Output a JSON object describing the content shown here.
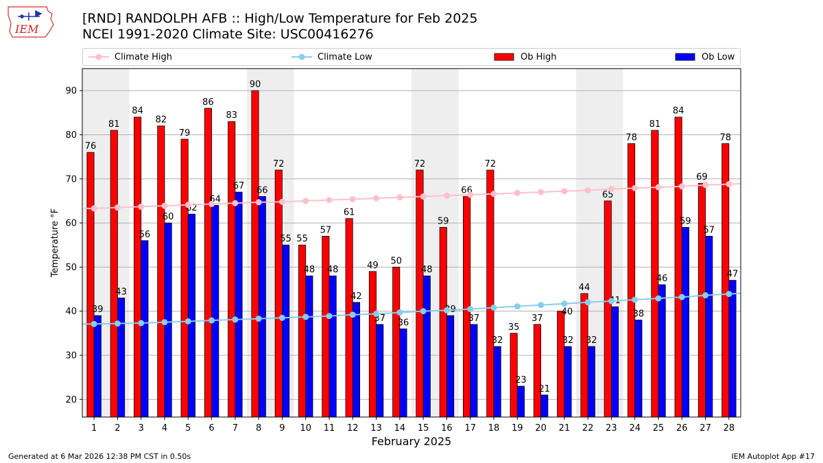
{
  "logo": {
    "text": "IEM"
  },
  "chart_data": {
    "type": "bar",
    "title": "[RND] RANDOLPH AFB :: High/Low Temperature for Feb 2025",
    "subtitle": "NCEI 1991-2020 Climate Site: USC00416276",
    "xlabel": "February 2025",
    "ylabel": "Temperature °F",
    "ylim": [
      16,
      95
    ],
    "yticks": [
      20,
      30,
      40,
      50,
      60,
      70,
      80,
      90
    ],
    "grid": true,
    "legend_position": "top",
    "categories": [
      "1",
      "2",
      "3",
      "4",
      "5",
      "6",
      "7",
      "8",
      "9",
      "10",
      "11",
      "12",
      "13",
      "14",
      "15",
      "16",
      "17",
      "18",
      "19",
      "20",
      "21",
      "22",
      "23",
      "24",
      "25",
      "26",
      "27",
      "28"
    ],
    "weekend_shading_days": [
      1,
      2,
      8,
      9,
      15,
      16,
      22,
      23
    ],
    "series": [
      {
        "name": "Ob High",
        "type": "bar",
        "color": "#ff0000",
        "values": [
          76,
          81,
          84,
          82,
          79,
          86,
          83,
          90,
          72,
          55,
          57,
          61,
          49,
          50,
          72,
          59,
          66,
          72,
          35,
          37,
          40,
          44,
          65,
          78,
          81,
          84,
          69,
          78
        ],
        "labels": [
          "76",
          "81",
          "84",
          "82",
          "79",
          "86",
          "83",
          "90",
          "72",
          "55",
          "57",
          "61",
          "49",
          "50",
          "72",
          "59",
          "66",
          "72",
          "35",
          "37",
          "",
          "44",
          "65",
          "78",
          "81",
          "84",
          "69",
          "78"
        ]
      },
      {
        "name": "Ob Low",
        "type": "bar",
        "color": "#0000ff",
        "values": [
          39,
          43,
          56,
          60,
          62,
          64,
          67,
          66,
          55,
          48,
          48,
          42,
          37,
          36,
          48,
          39,
          37,
          32,
          23,
          21,
          32,
          32,
          41,
          38,
          46,
          59,
          57,
          47
        ],
        "labels": [
          "39",
          "43",
          "56",
          "60",
          "62",
          "64",
          "67",
          "66",
          "55",
          "48",
          "48",
          "42",
          "37",
          "36",
          "48",
          "39",
          "37",
          "32",
          "23",
          "21",
          "32",
          "32",
          "41",
          "38",
          "46",
          "59",
          "57",
          "47"
        ]
      },
      {
        "name": "Climate High",
        "type": "line",
        "color": "#ffc0cb",
        "values": [
          63.3,
          63.5,
          63.7,
          63.9,
          64.1,
          64.3,
          64.5,
          64.7,
          64.8,
          65.0,
          65.2,
          65.4,
          65.6,
          65.8,
          66.0,
          66.2,
          66.4,
          66.6,
          66.8,
          67.0,
          67.2,
          67.4,
          67.7,
          67.9,
          68.1,
          68.3,
          68.6,
          68.8
        ]
      },
      {
        "name": "Climate Low",
        "type": "line",
        "color": "#87ceeb",
        "values": [
          37.1,
          37.2,
          37.3,
          37.5,
          37.7,
          37.9,
          38.1,
          38.3,
          38.5,
          38.7,
          38.9,
          39.2,
          39.4,
          39.7,
          40.0,
          40.2,
          40.5,
          40.8,
          41.1,
          41.4,
          41.7,
          42.0,
          42.3,
          42.6,
          42.9,
          43.2,
          43.6,
          43.9
        ]
      }
    ],
    "extra_labels": [
      {
        "text": "40",
        "x": "21",
        "y": 40
      }
    ]
  },
  "footer": {
    "left": "Generated at 6 Mar 2026 12:38 PM CST in 0.50s",
    "right": "IEM Autoplot App #17"
  }
}
